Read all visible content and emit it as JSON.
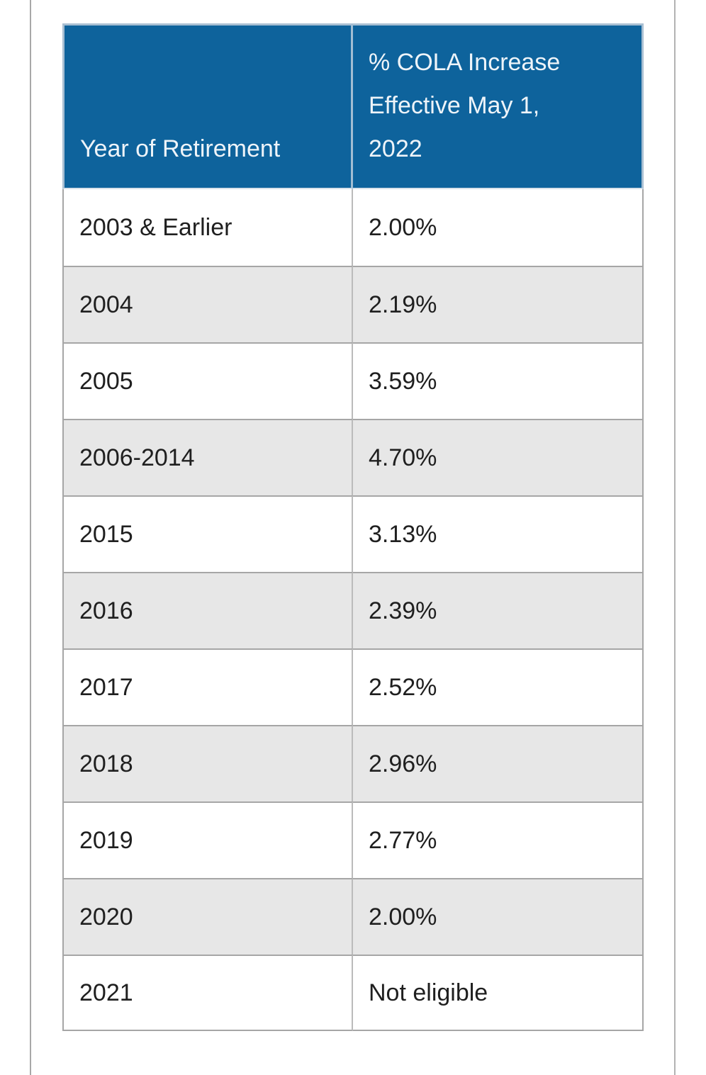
{
  "colors": {
    "header_bg": "#0e639c",
    "header_text": "#eef4f9",
    "header_border": "#a9bfd2",
    "row_alt_bg": "#e7e7e7",
    "row_text": "#1f1f1f",
    "border": "#a6a6a6",
    "col_divider": "#bbbbbb",
    "page_rule": "#a8a8a8",
    "page_rule_right": "#b2b2b2"
  },
  "table": {
    "header": {
      "year_col": "Year of Retirement",
      "cola_col": "% COLA Increase Effective May 1, 2022",
      "cola_col_lines": [
        "% COLA Increase",
        "Effective May 1,",
        "2022"
      ]
    },
    "rows": [
      {
        "year": "2003 & Earlier",
        "cola": "2.00%"
      },
      {
        "year": "2004",
        "cola": "2.19%"
      },
      {
        "year": "2005",
        "cola": "3.59%"
      },
      {
        "year": "2006-2014",
        "cola": "4.70%"
      },
      {
        "year": "2015",
        "cola": "3.13%"
      },
      {
        "year": "2016",
        "cola": "2.39%"
      },
      {
        "year": "2017",
        "cola": "2.52%"
      },
      {
        "year": "2018",
        "cola": "2.96%"
      },
      {
        "year": "2019",
        "cola": "2.77%"
      },
      {
        "year": "2020",
        "cola": "2.00%"
      },
      {
        "year": "2021",
        "cola": "Not eligible"
      }
    ]
  }
}
